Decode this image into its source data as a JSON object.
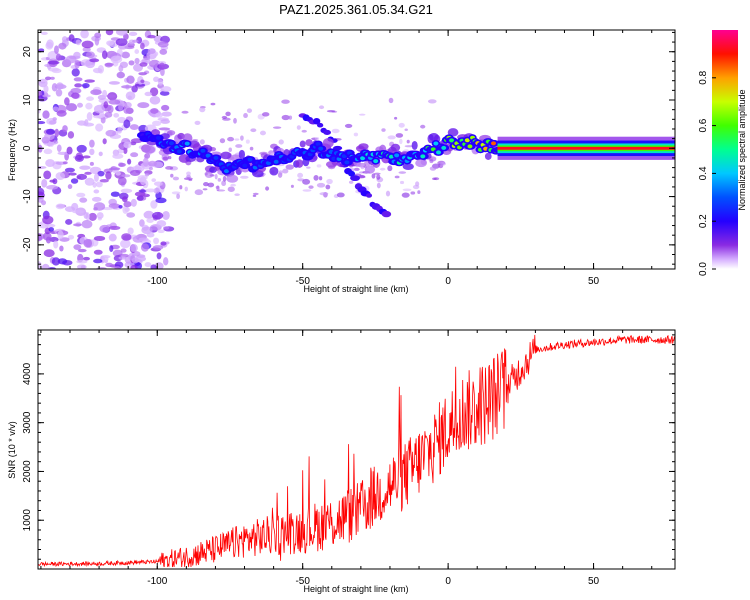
{
  "title": "PAZ1.2025.361.05.34.G21",
  "chart_data": [
    {
      "type": "heatmap",
      "xlabel": "Height of straight line (km)",
      "ylabel": "Frequency (Hz)",
      "xlim": [
        -141,
        78
      ],
      "ylim": [
        -25,
        24.5
      ],
      "xticks": [
        -100,
        -50,
        0,
        50
      ],
      "yticks": [
        -20,
        -10,
        0,
        10,
        20
      ],
      "xtick_labels": [
        "-100",
        "-50",
        "0",
        "50"
      ],
      "ytick_labels": [
        "-20",
        "-10",
        "0",
        "10",
        "20"
      ],
      "colorbar": {
        "label": "Normalized spectral amplitude",
        "range": [
          0,
          1
        ],
        "ticks": [
          0.0,
          0.2,
          0.4,
          0.6,
          0.8
        ],
        "tick_labels": [
          "0.0",
          "0.2",
          "0.4",
          "0.6",
          "0.8"
        ],
        "colors": [
          "#ffffff",
          "#b060ff",
          "#3c00ff",
          "#0000ff",
          "#00c8ff",
          "#00ff80",
          "#60ff00",
          "#ffff00",
          "#ff8000",
          "#ff0000",
          "#ff0090"
        ]
      },
      "ridge": {
        "x": [
          -105,
          -95,
          -85,
          -75,
          -65,
          -55,
          -45,
          -35,
          -25,
          -15,
          -5,
          0,
          5,
          10,
          15,
          20,
          50,
          78
        ],
        "y": [
          2,
          1,
          -1,
          -4,
          -3,
          -2,
          0,
          -2,
          -2,
          -2,
          0,
          1,
          1,
          1,
          0,
          0,
          0,
          0
        ],
        "amplitude": [
          0.25,
          0.35,
          0.35,
          0.3,
          0.3,
          0.3,
          0.3,
          0.35,
          0.45,
          0.5,
          0.55,
          0.6,
          0.65,
          0.7,
          0.8,
          0.9,
          0.92,
          0.92
        ]
      },
      "branch": {
        "x": [
          -50,
          -45,
          -40,
          -35,
          -30,
          -25,
          -20
        ],
        "y": [
          7,
          5,
          2,
          -4,
          -8,
          -12,
          -14
        ]
      }
    },
    {
      "type": "line",
      "xlabel": "Height of straight line (km)",
      "ylabel": "SNR (10 * v/v)",
      "xlim": [
        -141,
        78
      ],
      "ylim": [
        0,
        4900
      ],
      "xticks": [
        -100,
        -50,
        0,
        50
      ],
      "yticks": [
        1000,
        2000,
        3000,
        4000
      ],
      "xtick_labels": [
        "-100",
        "-50",
        "0",
        "50"
      ],
      "ytick_labels": [
        "1000",
        "2000",
        "3000",
        "4000"
      ],
      "color": "#ff0000",
      "series": [
        {
          "x": [
            -141,
            -120,
            -100,
            -90,
            -80,
            -70,
            -60,
            -50,
            -40,
            -30,
            -25,
            -20,
            -15,
            -10,
            -5,
            0,
            5,
            10,
            15,
            20,
            25,
            30,
            40,
            50,
            60,
            70,
            78
          ],
          "y": [
            100,
            110,
            150,
            250,
            400,
            600,
            700,
            800,
            950,
            1200,
            1500,
            1700,
            1900,
            2200,
            2500,
            2900,
            3200,
            3300,
            3500,
            3700,
            4100,
            4500,
            4600,
            4650,
            4700,
            4700,
            4700
          ]
        }
      ]
    }
  ]
}
